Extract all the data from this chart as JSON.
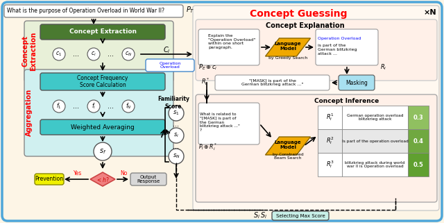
{
  "fig_width": 6.4,
  "fig_height": 3.21,
  "dpi": 100,
  "bg_color": "#fdf5e6",
  "border_color": "#4da6d9",
  "title_question": "What is the purpose of Operation Overload in World War II?",
  "concept_guessing_title": "Concept Guessing",
  "times_n": "×N",
  "concept_extraction_label": "Concept\nExtraction",
  "aggregation_label": "Aggregation",
  "familiarity_score_label": "Familiarity\nScore",
  "concept_inference_label": "Concept Inference",
  "concept_explanation_label": "Concept Explanation",
  "green_box_color": "#8db870",
  "teal_box_color": "#40c8c8",
  "light_green_bg": "#e8f0d8",
  "light_teal_bg": "#d0f0f0",
  "gold_color": "#f0a800",
  "pink_diamond_color": "#f08080",
  "yellow_box_color": "#f0f000",
  "light_blue_box": "#a8e0f0",
  "gray_box_color": "#c0c0c0",
  "white_color": "#ffffff",
  "red_color": "#ff0000",
  "blue_color": "#0000ff",
  "dark_green_color": "#4a7a30",
  "inference_green1": "#90c060",
  "inference_green2": "#70a840",
  "inference_green3": "#60a030"
}
